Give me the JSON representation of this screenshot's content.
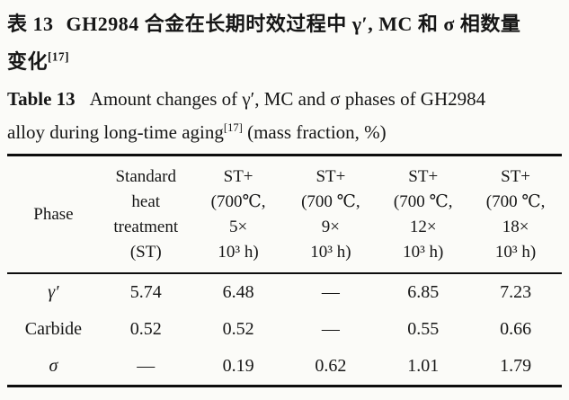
{
  "caption_zh": {
    "label": "表 13",
    "line1": "GH2984 合金在长期时效过程中 γ′, MC 和 σ 相数量",
    "line2": "变化",
    "ref": "[17]"
  },
  "caption_en": {
    "label": "Table 13",
    "line1": "Amount changes of γ′, MC and σ phases of GH2984",
    "line2_before_ref": "alloy during long-time aging",
    "ref": "[17]",
    "line2_after_ref": " (mass fraction, %)"
  },
  "table": {
    "header": [
      {
        "lines": [
          "Phase"
        ]
      },
      {
        "lines": [
          "Standard",
          "heat",
          "treatment",
          "(ST)"
        ]
      },
      {
        "lines": [
          "ST+",
          "(700℃,",
          "5×",
          "10³ h)"
        ]
      },
      {
        "lines": [
          "ST+",
          "(700 ℃,",
          "9×",
          "10³ h)"
        ]
      },
      {
        "lines": [
          "ST+",
          "(700 ℃,",
          "12×",
          "10³ h)"
        ]
      },
      {
        "lines": [
          "ST+",
          "(700 ℃,",
          "18×",
          "10³ h)"
        ]
      }
    ],
    "rows": [
      {
        "phase": "γ′",
        "phase_italic": true,
        "values": [
          "5.74",
          "6.48",
          "—",
          "6.85",
          "7.23"
        ]
      },
      {
        "phase": "Carbide",
        "phase_italic": false,
        "values": [
          "0.52",
          "0.52",
          "—",
          "0.55",
          "0.66"
        ]
      },
      {
        "phase": "σ",
        "phase_italic": true,
        "values": [
          "—",
          "0.19",
          "0.62",
          "1.01",
          "1.79"
        ]
      }
    ]
  }
}
